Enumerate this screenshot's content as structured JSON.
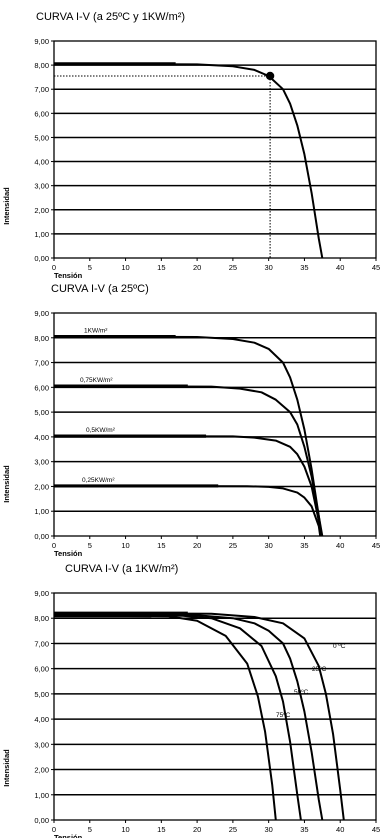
{
  "chart_data": [
    {
      "type": "line",
      "title": "CURVA I-V (a 25ºC y 1KW/m²)",
      "xlabel": "Tensión",
      "ylabel": "Intensidad",
      "xlim": [
        0,
        45
      ],
      "ylim": [
        0,
        9
      ],
      "x_ticks": [
        "0",
        "5",
        "10",
        "15",
        "20",
        "25",
        "30",
        "35",
        "40",
        "45"
      ],
      "y_ticks": [
        "0,00",
        "1,00",
        "2,00",
        "3,00",
        "4,00",
        "5,00",
        "6,00",
        "7,00",
        "8,00",
        "9,00"
      ],
      "grid": "horizontal",
      "series": [
        {
          "x": [
            0,
            20,
            25,
            28,
            30,
            32,
            33,
            34,
            35,
            36,
            37,
            37.5
          ],
          "y": [
            8.05,
            8.03,
            7.95,
            7.8,
            7.55,
            7.0,
            6.4,
            5.5,
            4.3,
            2.7,
            0.8,
            0.0
          ]
        }
      ],
      "marker": {
        "x": 30.2,
        "y": 7.55
      },
      "guides": {
        "x": 30.2,
        "y": 7.55
      }
    },
    {
      "type": "line",
      "title": "CURVA I-V (a 25ºC)",
      "xlabel": "Tensión",
      "ylabel": "Intensidad",
      "xlim": [
        0,
        45
      ],
      "ylim": [
        0,
        9
      ],
      "x_ticks": [
        "0",
        "5",
        "10",
        "15",
        "20",
        "25",
        "30",
        "35",
        "40",
        "45"
      ],
      "y_ticks": [
        "0,00",
        "1,00",
        "2,00",
        "3,00",
        "4,00",
        "5,00",
        "6,00",
        "7,00",
        "8,00",
        "9,00"
      ],
      "grid": "horizontal",
      "series": [
        {
          "name": "1KW/m²",
          "x": [
            0,
            20,
            25,
            28,
            30,
            32,
            33,
            34,
            35,
            36,
            37,
            37.5
          ],
          "y": [
            8.05,
            8.03,
            7.95,
            7.8,
            7.55,
            7.0,
            6.4,
            5.5,
            4.3,
            2.7,
            0.8,
            0.0
          ]
        },
        {
          "name": "0,75KW/m²",
          "x": [
            0,
            22,
            26,
            29,
            31,
            33,
            34,
            35,
            36,
            37,
            37.4
          ],
          "y": [
            6.05,
            6.03,
            5.95,
            5.8,
            5.5,
            5.0,
            4.5,
            3.6,
            2.4,
            0.8,
            0.0
          ]
        },
        {
          "name": "0,5KW/m²",
          "x": [
            0,
            25,
            28,
            31,
            33,
            34,
            35,
            36,
            37,
            37.3
          ],
          "y": [
            4.03,
            4.02,
            3.97,
            3.85,
            3.6,
            3.3,
            2.8,
            2.0,
            0.6,
            0.0
          ]
        },
        {
          "name": "0,25KW/m²",
          "x": [
            0,
            27,
            30,
            32,
            34,
            35,
            36,
            37,
            37.2
          ],
          "y": [
            2.02,
            2.01,
            1.98,
            1.92,
            1.75,
            1.55,
            1.2,
            0.4,
            0.0
          ]
        }
      ]
    },
    {
      "type": "line",
      "title": "CURVA I-V (a 1KW/m²)",
      "xlabel": "Tensión",
      "ylabel": "Intensidad",
      "xlim": [
        0,
        45
      ],
      "ylim": [
        0,
        9
      ],
      "x_ticks": [
        "0",
        "5",
        "10",
        "15",
        "20",
        "25",
        "30",
        "35",
        "40",
        "45"
      ],
      "y_ticks": [
        "0,00",
        "1,00",
        "2,00",
        "3,00",
        "4,00",
        "5,00",
        "6,00",
        "7,00",
        "8,00",
        "9,00"
      ],
      "grid": "horizontal",
      "series": [
        {
          "name": "0 ºC",
          "x": [
            0,
            22,
            28,
            32,
            35,
            37,
            38,
            39,
            40,
            40.5
          ],
          "y": [
            8.2,
            8.18,
            8.05,
            7.8,
            7.2,
            6.1,
            5.0,
            3.4,
            1.2,
            0.0
          ]
        },
        {
          "name": "25ºC",
          "x": [
            0,
            20,
            25,
            28,
            30,
            32,
            33,
            34,
            35,
            36,
            37,
            37.5
          ],
          "y": [
            8.15,
            8.12,
            8.0,
            7.8,
            7.5,
            7.0,
            6.4,
            5.5,
            4.3,
            2.7,
            0.8,
            0.0
          ]
        },
        {
          "name": "50ºC",
          "x": [
            0,
            18,
            22,
            26,
            29,
            31,
            32,
            33,
            34,
            34.5
          ],
          "y": [
            8.12,
            8.1,
            8.0,
            7.6,
            6.9,
            5.7,
            4.7,
            3.1,
            1.0,
            0.0
          ]
        },
        {
          "name": "75ºC",
          "x": [
            0,
            16,
            20,
            24,
            27,
            28.5,
            29.5,
            30.5,
            31
          ],
          "y": [
            8.1,
            8.08,
            7.9,
            7.3,
            6.2,
            4.9,
            3.5,
            1.4,
            0.0
          ]
        }
      ]
    }
  ]
}
